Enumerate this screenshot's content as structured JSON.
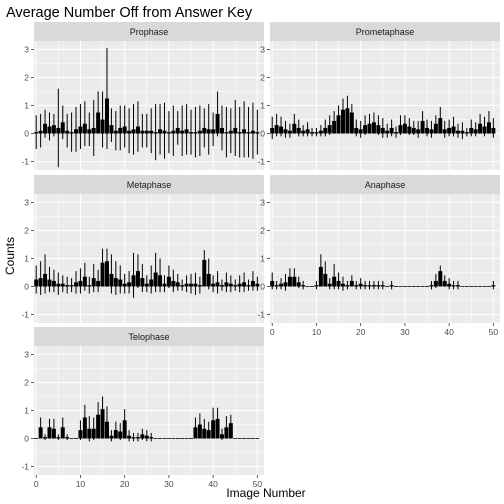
{
  "chart_data": {
    "type": "bar",
    "title": "Average Number Off from Answer Key",
    "xlabel": "Image Number",
    "ylabel": "Counts",
    "xlim": [
      -0.5,
      51.5
    ],
    "ylim": [
      -1.3,
      3.3
    ],
    "x_ticks": [
      "0",
      "10",
      "20",
      "30",
      "40",
      "50"
    ],
    "y_ticks": [
      "-1",
      "0",
      "1",
      "2",
      "3"
    ],
    "grid": true,
    "legend": "none",
    "colors": {
      "panel": "#ebebeb",
      "strip": "#d9d9d9",
      "bar": "#000000",
      "grid": "#ffffff",
      "text": "#1a1a1a",
      "tick_text": "#4d4d4d"
    },
    "panels": [
      {
        "name": "Prophase",
        "x": [
          0,
          1,
          2,
          3,
          4,
          5,
          6,
          7,
          8,
          9,
          10,
          11,
          12,
          13,
          14,
          15,
          16,
          17,
          18,
          19,
          20,
          21,
          22,
          23,
          24,
          25,
          26,
          27,
          28,
          29,
          30,
          31,
          32,
          33,
          34,
          35,
          36,
          37,
          38,
          39,
          40,
          41,
          42,
          43,
          44,
          45,
          46,
          47,
          48,
          49,
          50
        ],
        "values": [
          0.05,
          0.1,
          0.35,
          0.25,
          0.3,
          0.2,
          0.4,
          0.1,
          0.05,
          0.15,
          0.25,
          0.35,
          0.15,
          0.2,
          0.75,
          0.5,
          1.25,
          0.3,
          0.1,
          0.2,
          0.25,
          0.1,
          0.15,
          0.25,
          0.1,
          0.1,
          0.1,
          0.05,
          0.15,
          0.1,
          0.05,
          0.1,
          0.2,
          0.1,
          0.15,
          0.05,
          0.05,
          0.1,
          0.2,
          0.15,
          0.15,
          0.7,
          0.2,
          0.05,
          0.1,
          0.2,
          0.05,
          0.15,
          0.05,
          0.1,
          0.05
        ],
        "err": [
          0.6,
          0.6,
          0.5,
          0.5,
          0.4,
          1.4,
          0.6,
          0.6,
          0.7,
          0.8,
          0.8,
          0.8,
          0.6,
          1.0,
          0.75,
          1.0,
          1.8,
          0.6,
          0.7,
          0.8,
          0.75,
          0.8,
          0.9,
          0.9,
          0.6,
          0.6,
          0.8,
          1.0,
          0.9,
          1.0,
          0.75,
          0.9,
          0.6,
          0.9,
          0.9,
          0.8,
          0.9,
          0.9,
          0.7,
          0.9,
          0.6,
          0.8,
          0.8,
          0.9,
          0.8,
          1.0,
          0.9,
          1.0,
          0.9,
          1.0,
          0.8
        ]
      },
      {
        "name": "Prometaphase",
        "x": [
          0,
          1,
          2,
          3,
          4,
          5,
          6,
          7,
          8,
          9,
          10,
          11,
          12,
          13,
          14,
          15,
          16,
          17,
          18,
          19,
          20,
          21,
          22,
          23,
          24,
          25,
          26,
          27,
          28,
          29,
          30,
          31,
          32,
          33,
          34,
          35,
          36,
          37,
          38,
          39,
          40,
          41,
          42,
          43,
          44,
          45,
          46,
          47,
          48,
          49,
          50
        ],
        "values": [
          0.2,
          0.3,
          0.25,
          0.15,
          0.1,
          0.35,
          0.2,
          0.1,
          0.15,
          0.05,
          0.05,
          0.1,
          0.2,
          0.3,
          0.45,
          0.65,
          0.85,
          0.9,
          0.75,
          0.2,
          0.15,
          0.3,
          0.35,
          0.4,
          0.3,
          0.2,
          0.1,
          0.2,
          0.05,
          0.3,
          0.35,
          0.25,
          0.2,
          0.15,
          0.45,
          0.2,
          0.15,
          0.35,
          0.55,
          0.15,
          0.2,
          0.25,
          0.1,
          0.1,
          0.05,
          0.2,
          0.15,
          0.35,
          0.25,
          0.4,
          0.2
        ],
        "err": [
          0.4,
          0.4,
          0.35,
          0.3,
          0.25,
          0.35,
          0.3,
          0.2,
          0.25,
          0.15,
          0.15,
          0.2,
          0.3,
          0.35,
          0.35,
          0.35,
          0.4,
          0.45,
          0.3,
          0.3,
          0.3,
          0.35,
          0.35,
          0.35,
          0.35,
          0.35,
          0.25,
          0.3,
          0.2,
          0.35,
          0.3,
          0.3,
          0.25,
          0.3,
          0.35,
          0.3,
          0.3,
          0.3,
          0.4,
          0.3,
          0.3,
          0.35,
          0.25,
          0.3,
          0.15,
          0.3,
          0.25,
          0.35,
          0.35,
          0.4,
          0.35
        ]
      },
      {
        "name": "Metaphase",
        "x": [
          0,
          1,
          2,
          3,
          4,
          5,
          6,
          7,
          8,
          9,
          10,
          11,
          12,
          13,
          14,
          15,
          16,
          17,
          18,
          19,
          20,
          21,
          22,
          23,
          24,
          25,
          26,
          27,
          28,
          29,
          30,
          31,
          32,
          33,
          34,
          35,
          36,
          37,
          38,
          39,
          40,
          41,
          42,
          43,
          44,
          45,
          46,
          47,
          48,
          49,
          50
        ],
        "values": [
          0.25,
          0.3,
          0.45,
          0.25,
          0.2,
          0.1,
          0.1,
          0.05,
          0.05,
          0.15,
          0.2,
          0.35,
          0.05,
          0.3,
          0.2,
          0.85,
          0.9,
          0.45,
          0.3,
          0.25,
          0.1,
          0.15,
          0.4,
          0.55,
          0.3,
          0.1,
          0.25,
          0.5,
          0.4,
          0.1,
          0.35,
          0.2,
          0.15,
          0.05,
          0.1,
          0.1,
          0.1,
          0.05,
          0.95,
          0.45,
          0.1,
          0.15,
          0.05,
          0.15,
          0.1,
          0.05,
          0.1,
          0.15,
          0.05,
          0.2,
          0.1
        ],
        "err": [
          0.5,
          0.6,
          0.7,
          0.45,
          0.4,
          0.4,
          0.3,
          0.3,
          0.25,
          0.4,
          0.45,
          0.5,
          0.3,
          0.5,
          0.4,
          0.5,
          0.45,
          0.7,
          0.6,
          0.5,
          0.35,
          0.4,
          0.8,
          0.6,
          0.5,
          0.3,
          0.5,
          0.7,
          0.6,
          0.3,
          0.4,
          0.4,
          0.3,
          0.2,
          0.3,
          0.35,
          0.4,
          0.3,
          0.35,
          0.55,
          0.3,
          0.4,
          0.2,
          0.35,
          0.3,
          0.2,
          0.3,
          0.35,
          0.2,
          0.35,
          0.25
        ]
      },
      {
        "name": "Anaphase",
        "x": [
          0,
          1,
          2,
          3,
          4,
          5,
          6,
          7,
          8,
          9,
          10,
          11,
          12,
          13,
          14,
          15,
          16,
          17,
          18,
          19,
          20,
          21,
          22,
          23,
          24,
          25,
          26,
          27,
          28,
          29,
          30,
          31,
          32,
          33,
          34,
          35,
          36,
          37,
          38,
          39,
          40,
          41,
          42,
          43,
          44,
          45,
          46,
          47,
          48,
          49,
          50
        ],
        "values": [
          0.2,
          0.05,
          0.1,
          0.15,
          0.35,
          0.35,
          0.15,
          0.05,
          0.0,
          0.0,
          0.05,
          0.7,
          0.45,
          0.1,
          0.35,
          0.2,
          0.1,
          0.05,
          0.2,
          0.05,
          0.1,
          0.05,
          0.05,
          0.05,
          0.05,
          0.05,
          0.0,
          0.05,
          0.0,
          0.0,
          0.0,
          0.0,
          0.0,
          0.0,
          0.0,
          0.0,
          0.05,
          0.2,
          0.55,
          0.2,
          0.1,
          0.05,
          0.05,
          0.0,
          0.0,
          0.0,
          0.0,
          0.0,
          0.0,
          0.0,
          0.05
        ],
        "err": [
          0.3,
          0.15,
          0.2,
          0.3,
          0.3,
          0.3,
          0.2,
          0.15,
          0.0,
          0.0,
          0.15,
          0.45,
          0.45,
          0.2,
          0.45,
          0.3,
          0.25,
          0.15,
          0.2,
          0.15,
          0.2,
          0.15,
          0.15,
          0.15,
          0.15,
          0.15,
          0.0,
          0.15,
          0.0,
          0.0,
          0.0,
          0.0,
          0.0,
          0.0,
          0.0,
          0.0,
          0.15,
          0.25,
          0.2,
          0.2,
          0.2,
          0.15,
          0.15,
          0.0,
          0.0,
          0.0,
          0.0,
          0.0,
          0.0,
          0.0,
          0.15
        ]
      },
      {
        "name": "Telophase",
        "x": [
          0,
          1,
          2,
          3,
          4,
          5,
          6,
          7,
          8,
          9,
          10,
          11,
          12,
          13,
          14,
          15,
          16,
          17,
          18,
          19,
          20,
          21,
          22,
          23,
          24,
          25,
          26,
          27,
          28,
          29,
          30,
          31,
          32,
          33,
          34,
          35,
          36,
          37,
          38,
          39,
          40,
          41,
          42,
          43,
          44,
          45,
          46,
          47,
          48,
          49,
          50
        ],
        "values": [
          0.0,
          0.4,
          0.05,
          0.4,
          0.35,
          0.05,
          0.4,
          0.05,
          0.0,
          0.0,
          0.3,
          0.75,
          0.35,
          0.35,
          0.85,
          1.05,
          0.6,
          0.1,
          0.3,
          0.25,
          0.65,
          0.1,
          0.05,
          0.05,
          0.15,
          0.1,
          0.05,
          0.0,
          0.0,
          0.0,
          0.0,
          0.0,
          0.0,
          0.0,
          0.0,
          0.0,
          0.4,
          0.5,
          0.35,
          0.3,
          0.65,
          0.7,
          0.15,
          0.4,
          0.55,
          0.0,
          0.0,
          0.0,
          0.0,
          0.0,
          0.0
        ],
        "err": [
          0.0,
          0.35,
          0.1,
          0.3,
          0.35,
          0.1,
          0.35,
          0.1,
          0.0,
          0.0,
          0.35,
          0.45,
          0.45,
          0.4,
          0.45,
          0.45,
          0.55,
          0.2,
          0.3,
          0.3,
          0.4,
          0.2,
          0.15,
          0.15,
          0.2,
          0.2,
          0.15,
          0.0,
          0.0,
          0.0,
          0.0,
          0.0,
          0.0,
          0.0,
          0.0,
          0.0,
          0.35,
          0.4,
          0.35,
          0.3,
          0.45,
          0.4,
          0.2,
          0.4,
          0.3,
          0.0,
          0.0,
          0.0,
          0.0,
          0.0,
          0.0
        ]
      }
    ]
  }
}
